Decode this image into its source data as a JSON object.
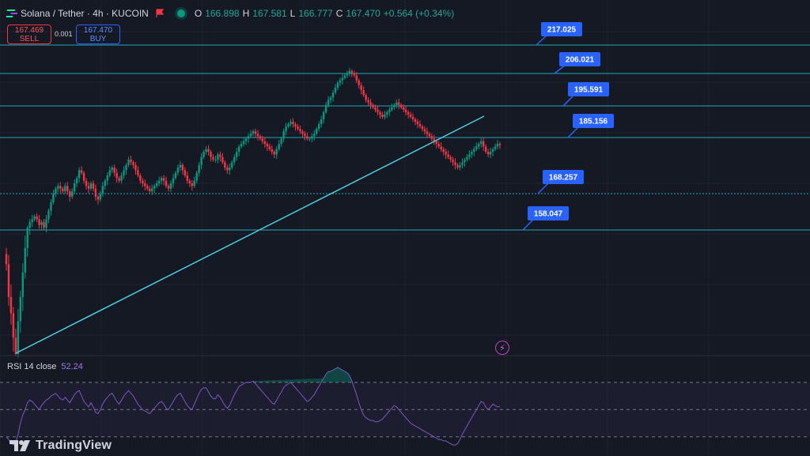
{
  "header": {
    "symbol_title": "Solana / Tether · 4h · KUCOIN",
    "ohlc": [
      {
        "k": "O",
        "v": "166.898"
      },
      {
        "k": "H",
        "v": "167.581"
      },
      {
        "k": "L",
        "v": "166.777"
      },
      {
        "k": "C",
        "v": "167.470"
      },
      {
        "k": "",
        "v": "+0.564 (+0.34%)"
      }
    ]
  },
  "trade": {
    "sell_price": "167.469",
    "sell_label": "SELL",
    "spread": "0.001",
    "buy_price": "167.470",
    "buy_label": "BUY"
  },
  "indicator": {
    "rsi_label": "RSI 14 close",
    "rsi_value": "52.24"
  },
  "brand": "TradingView",
  "colors": {
    "background": "#151924",
    "up": "#089981",
    "down": "#f23645",
    "level_line": "#22a5b8",
    "trendline": "#4dd0e1",
    "callout": "#2962ff",
    "rsi": "#7e57c2"
  },
  "chart_data": {
    "type": "candlestick",
    "price_range": [
      145,
      222
    ],
    "horizontal_levels": [
      {
        "label": "217.025",
        "value": 217.025
      },
      {
        "label": "206.021",
        "value": 206.021
      },
      {
        "label": "195.591",
        "value": 195.591
      },
      {
        "label": "185.156",
        "value": 185.156
      },
      {
        "label": "168.257",
        "value": 168.257
      },
      {
        "label": "158.047",
        "value": 158.047
      }
    ],
    "trendline": {
      "from": [
        0,
        146
      ],
      "to": [
        100,
        192
      ]
    },
    "candles_close": [
      132,
      128,
      126,
      123,
      121,
      125,
      128,
      131,
      134,
      137,
      139,
      140,
      141,
      140,
      138,
      139,
      137,
      140,
      143,
      146,
      149,
      151,
      152,
      151,
      150,
      152,
      150,
      148,
      150,
      153,
      155,
      158,
      157,
      154,
      152,
      151,
      153,
      151,
      148,
      147,
      149,
      152,
      154,
      156,
      158,
      159,
      157,
      155,
      154,
      156,
      158,
      160,
      162,
      161,
      160,
      158,
      156,
      154,
      153,
      152,
      151,
      150,
      151,
      152,
      153,
      154,
      155,
      154,
      152,
      151,
      153,
      155,
      157,
      159,
      160,
      158,
      156,
      154,
      153,
      152,
      154,
      157,
      160,
      163,
      165,
      166,
      165,
      163,
      162,
      162,
      164,
      163,
      161,
      159,
      158,
      159,
      161,
      163,
      165,
      167,
      168,
      169,
      170,
      171,
      172,
      173,
      172,
      171,
      170,
      169,
      168,
      167,
      166,
      165,
      164,
      166,
      168,
      170,
      173,
      175,
      176,
      177,
      176,
      175,
      174,
      173,
      172,
      171,
      170,
      170,
      171,
      172,
      174,
      176,
      178,
      181,
      184,
      186,
      187,
      189,
      191,
      193,
      194,
      195,
      196,
      197,
      198,
      197,
      196,
      194,
      192,
      190,
      188,
      186,
      185,
      184,
      183,
      182,
      181,
      180,
      179,
      180,
      181,
      182,
      183,
      184,
      185,
      184,
      183,
      182,
      181,
      180,
      179,
      178,
      177,
      176,
      175,
      174,
      173,
      172,
      171,
      170,
      169,
      168,
      167,
      166,
      165,
      164,
      163,
      162,
      161,
      160,
      159,
      160,
      161,
      162,
      163,
      164,
      165,
      166,
      167,
      168,
      169,
      167,
      165,
      164,
      165,
      166,
      167,
      168,
      167.47
    ],
    "rsi_values": [
      30,
      28,
      26,
      24,
      26,
      32,
      40,
      46,
      50,
      55,
      57,
      56,
      54,
      52,
      50,
      53,
      55,
      57,
      58,
      60,
      61,
      62,
      60,
      58,
      57,
      59,
      57,
      55,
      58,
      61,
      63,
      64,
      60,
      56,
      54,
      52,
      55,
      52,
      48,
      47,
      50,
      54,
      57,
      59,
      61,
      62,
      59,
      56,
      54,
      57,
      60,
      62,
      64,
      62,
      60,
      57,
      54,
      52,
      50,
      49,
      48,
      47,
      49,
      51,
      53,
      55,
      56,
      54,
      51,
      50,
      53,
      56,
      59,
      61,
      62,
      59,
      56,
      53,
      51,
      50,
      54,
      58,
      62,
      65,
      66,
      66,
      63,
      60,
      58,
      58,
      61,
      59,
      56,
      53,
      51,
      53,
      57,
      61,
      64,
      67,
      68,
      69,
      70,
      70,
      70,
      71,
      69,
      67,
      65,
      63,
      61,
      59,
      57,
      55,
      54,
      57,
      60,
      63,
      66,
      68,
      69,
      70,
      68,
      66,
      64,
      62,
      60,
      58,
      56,
      57,
      59,
      61,
      64,
      67,
      70,
      73,
      76,
      78,
      78,
      79,
      80,
      81,
      80,
      79,
      78,
      77,
      75,
      71,
      66,
      61,
      55,
      50,
      46,
      44,
      43,
      42,
      42,
      41,
      41,
      42,
      43,
      45,
      47,
      49,
      51,
      53,
      52,
      50,
      48,
      46,
      44,
      42,
      40,
      39,
      38,
      37,
      36,
      35,
      34,
      33,
      32,
      31,
      30,
      29,
      28,
      28,
      27,
      27,
      26,
      25,
      24,
      24,
      25,
      28,
      32,
      35,
      38,
      41,
      44,
      47,
      50,
      53,
      56,
      55,
      52,
      50,
      52,
      54,
      53,
      52,
      52.24
    ],
    "rsi_levels": [
      70,
      50,
      30
    ]
  }
}
